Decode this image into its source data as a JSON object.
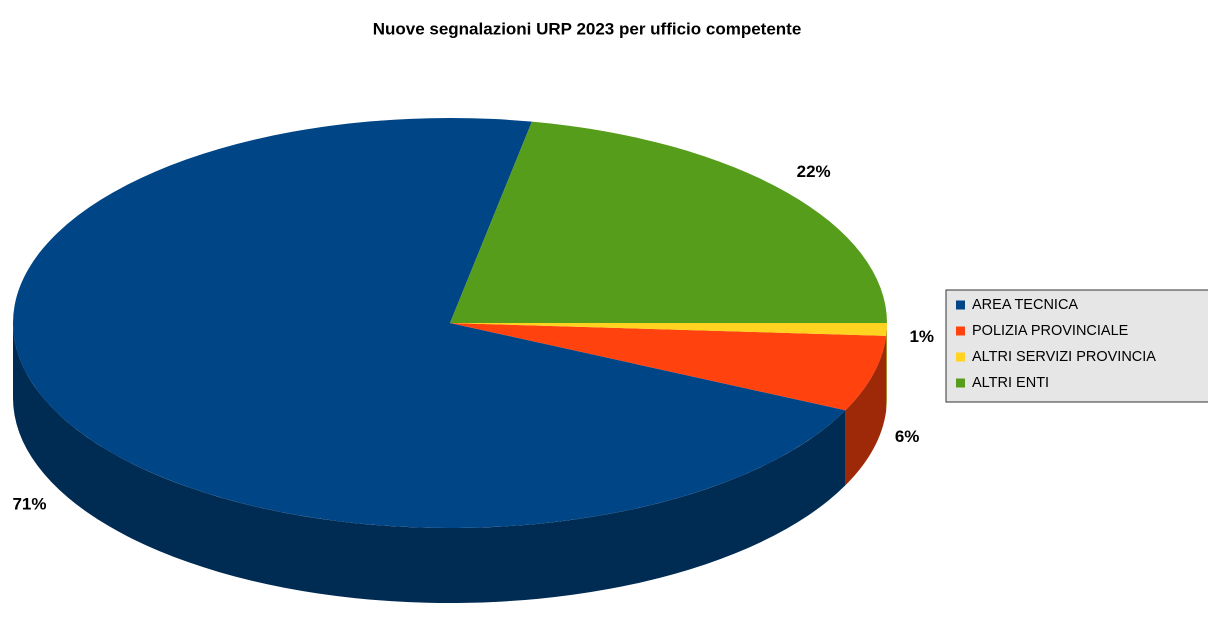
{
  "chart_data": {
    "type": "pie3d",
    "title": "Nuove segnalazioni URP 2023 per ufficio competente",
    "categories": [
      "AREA TECNICA",
      "POLIZIA PROVINCIALE",
      "ALTRI SERVIZI PROVINCIA",
      "ALTRI ENTI"
    ],
    "values": [
      71,
      6,
      1,
      22
    ],
    "value_labels": [
      "71%",
      "6%",
      "1%",
      "22%"
    ],
    "colors": [
      "#004586",
      "#ff420e",
      "#ffd320",
      "#579d1c"
    ],
    "legend": "right"
  }
}
